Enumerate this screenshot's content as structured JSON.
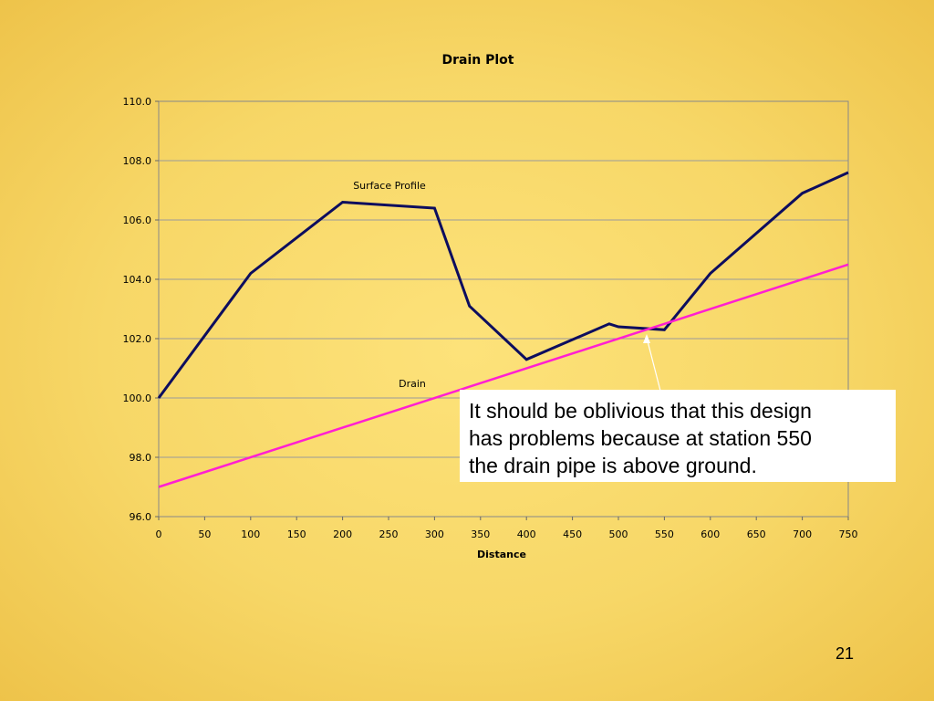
{
  "chart_data": {
    "type": "line",
    "title": "Drain Plot",
    "xlabel": "Distance",
    "ylabel": "",
    "xlim": [
      0,
      750
    ],
    "ylim": [
      96,
      110
    ],
    "xticks": [
      0,
      50,
      100,
      150,
      200,
      250,
      300,
      350,
      400,
      450,
      500,
      550,
      600,
      650,
      700,
      750
    ],
    "yticks": [
      "96.0",
      "98.0",
      "100.0",
      "102.0",
      "104.0",
      "106.0",
      "108.0",
      "110.0"
    ],
    "grid": "horizontal",
    "series": [
      {
        "name": "Surface Profile",
        "color": "#0d0d5e",
        "x": [
          0,
          100,
          200,
          300,
          338,
          400,
          490,
          500,
          550,
          600,
          700,
          750
        ],
        "y": [
          100.0,
          104.2,
          106.6,
          106.4,
          103.1,
          101.3,
          102.5,
          102.4,
          102.3,
          104.2,
          106.9,
          107.6
        ]
      },
      {
        "name": "Drain",
        "color": "#ff1fd2",
        "x": [
          0,
          750
        ],
        "y": [
          97.0,
          104.5
        ]
      }
    ]
  },
  "callout": {
    "line1": "It should be oblivious that this design",
    "line2": "has problems because at station 550",
    "line3": "the drain pipe is above ground."
  },
  "slide_number": "21"
}
